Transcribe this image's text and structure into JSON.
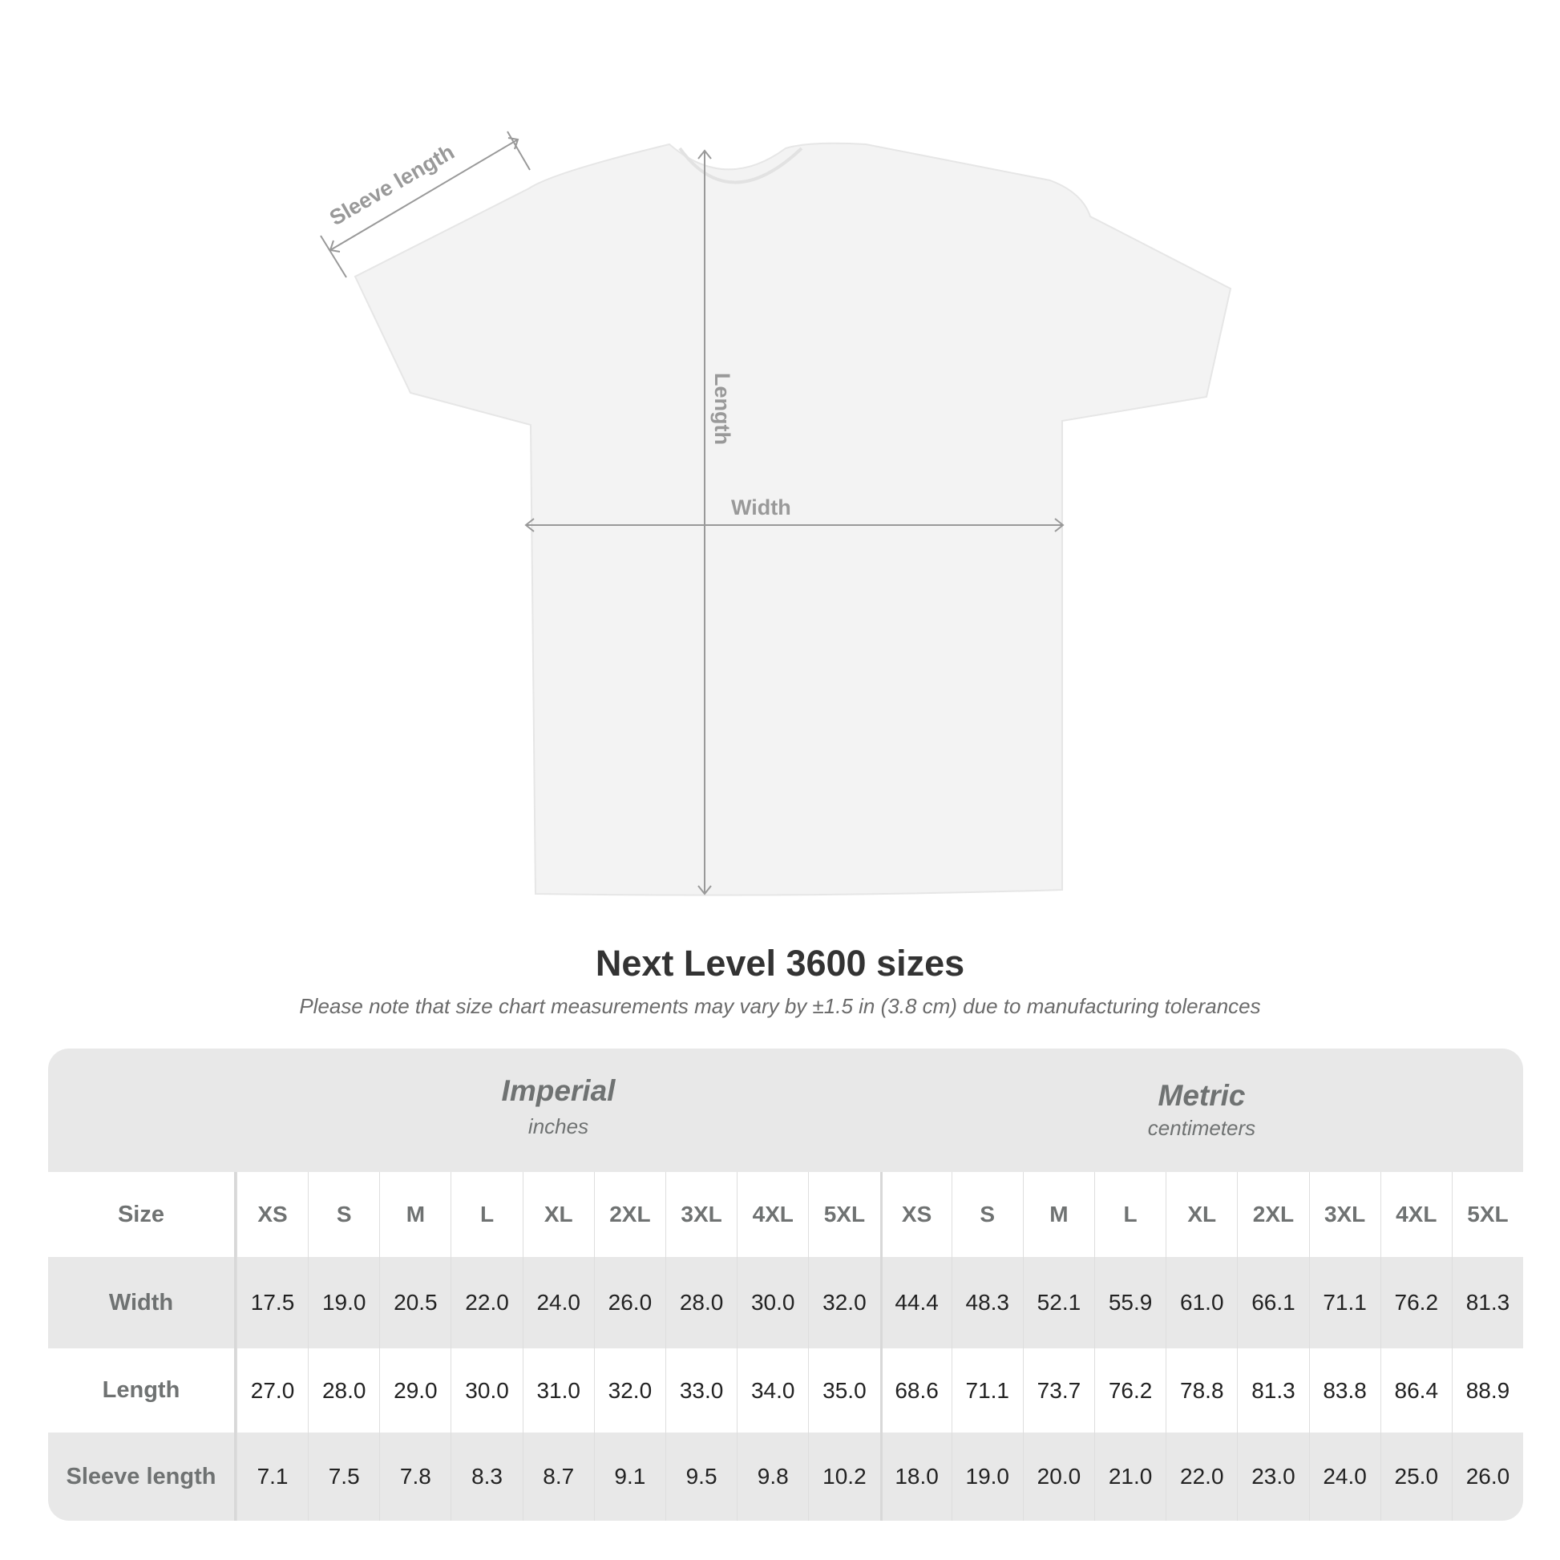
{
  "diagram": {
    "labels": {
      "sleeve": "Sleeve length",
      "length": "Length",
      "width": "Width"
    },
    "colors": {
      "shirt": "#f3f3f3",
      "arrow": "#999999",
      "label": "#999999"
    }
  },
  "title": "Next Level 3600 sizes",
  "subtitle": "Please note that size chart measurements may vary by ±1.5 in (3.8 cm) due to manufacturing tolerances",
  "table": {
    "imperial": {
      "name": "Imperial",
      "unit": "inches"
    },
    "metric": {
      "name": "Metric",
      "unit": "centimeters"
    },
    "header_label": "Size",
    "sizes": [
      "XS",
      "S",
      "M",
      "L",
      "XL",
      "2XL",
      "3XL",
      "4XL",
      "5XL"
    ],
    "rows": [
      {
        "label": "Width",
        "imperial": [
          "17.5",
          "19.0",
          "20.5",
          "22.0",
          "24.0",
          "26.0",
          "28.0",
          "30.0",
          "32.0"
        ],
        "metric": [
          "44.4",
          "48.3",
          "52.1",
          "55.9",
          "61.0",
          "66.1",
          "71.1",
          "76.2",
          "81.3"
        ]
      },
      {
        "label": "Length",
        "imperial": [
          "27.0",
          "28.0",
          "29.0",
          "30.0",
          "31.0",
          "32.0",
          "33.0",
          "34.0",
          "35.0"
        ],
        "metric": [
          "68.6",
          "71.1",
          "73.7",
          "76.2",
          "78.8",
          "81.3",
          "83.8",
          "86.4",
          "88.9"
        ]
      },
      {
        "label": "Sleeve length",
        "imperial": [
          "7.1",
          "7.5",
          "7.8",
          "8.3",
          "8.7",
          "9.1",
          "9.5",
          "9.8",
          "10.2"
        ],
        "metric": [
          "18.0",
          "19.0",
          "20.0",
          "21.0",
          "22.0",
          "23.0",
          "24.0",
          "25.0",
          "26.0"
        ]
      }
    ]
  }
}
